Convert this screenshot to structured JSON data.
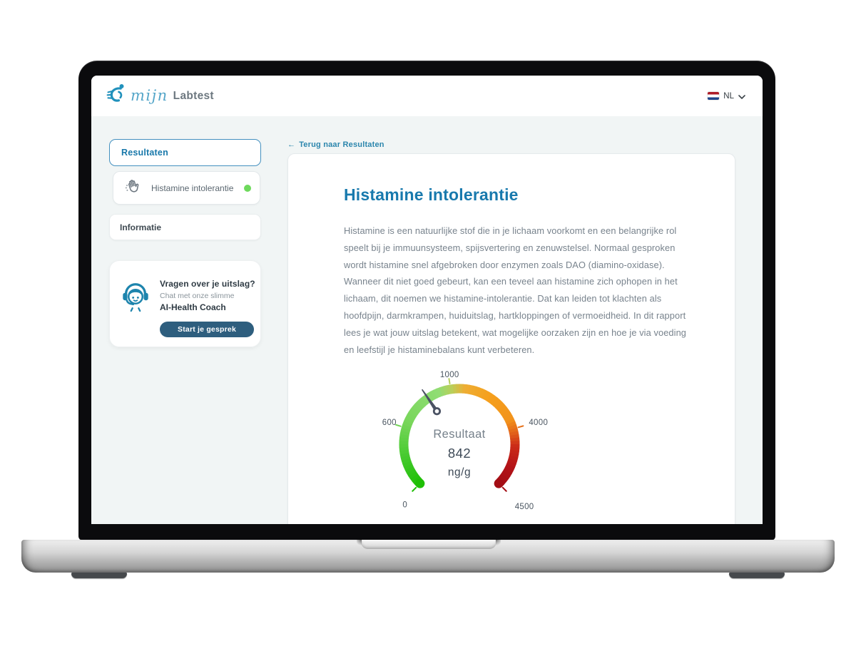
{
  "header": {
    "brand_script": "mijn",
    "brand_rest": "Labtest",
    "language": {
      "code": "NL"
    }
  },
  "sidebar": {
    "resultaten_label": "Resultaten",
    "test_item": {
      "label": "Histamine intolerantie",
      "status_color": "#6ed95c"
    },
    "informatie_label": "Informatie",
    "chat": {
      "title": "Vragen over je uitslag?",
      "subtitle": "Chat met onze slimme",
      "coach": "AI-Health Coach",
      "button_label": "Start je gesprek"
    }
  },
  "main": {
    "back_arrow": "←",
    "back_label": "Terug naar Resultaten",
    "title": "Histamine intolerantie",
    "intro": "Histamine is een natuurlijke stof die in je lichaam voorkomt en een belangrijke rol speelt bij je immuunsysteem, spijsvertering en zenuwstelsel. Normaal gesproken wordt histamine snel afgebroken door enzymen zoals DAO (diamino-oxidase). Wanneer dit niet goed gebeurt, kan een teveel aan histamine zich ophopen in het lichaam, dit noemen we histamine-intolerantie. Dat kan leiden tot klachten als hoofdpijn, darmkrampen, huiduitslag, hartkloppingen of vermoeidheid. In dit rapport lees je wat jouw uitslag betekent, wat mogelijke oorzaken zijn en hoe je via voeding en leefstijl je histaminebalans kunt verbeteren."
  },
  "chart_data": {
    "type": "gauge",
    "title": "Resultaat",
    "value": 842,
    "value_text": "842",
    "unit": "ng/g",
    "min": 0,
    "max": 4500,
    "start_angle": 225,
    "end_angle": -45,
    "ticks": [
      {
        "value": 0,
        "label": "0",
        "angle": 225,
        "label_angle": 228,
        "label_r": 114
      },
      {
        "value": 600,
        "label": "600",
        "angle": 163,
        "label_angle": 162.4,
        "label_r": 103
      },
      {
        "value": 1000,
        "label": "1000",
        "angle": 99,
        "label_angle": 98,
        "label_r": 99
      },
      {
        "value": 4000,
        "label": "4000",
        "angle": 16,
        "label_angle": 15.6,
        "label_r": 115
      },
      {
        "value": 4500,
        "label": "4500",
        "angle": -45,
        "label_angle": -43.7,
        "label_r": 126
      }
    ],
    "color_stops": [
      {
        "t": 0.0,
        "color": "#1fbf06"
      },
      {
        "t": 0.12,
        "color": "#46ca2e"
      },
      {
        "t": 0.25,
        "color": "#78d65a"
      },
      {
        "t": 0.42,
        "color": "#90dd74"
      },
      {
        "t": 0.47,
        "color": "#b9cf5a"
      },
      {
        "t": 0.52,
        "color": "#eead33"
      },
      {
        "t": 0.62,
        "color": "#f5a01d"
      },
      {
        "t": 0.74,
        "color": "#f2931c"
      },
      {
        "t": 0.79,
        "color": "#e2621a"
      },
      {
        "t": 0.84,
        "color": "#cb2b18"
      },
      {
        "t": 0.92,
        "color": "#b41318"
      },
      {
        "t": 1.0,
        "color": "#a30d14"
      }
    ],
    "needle_color": "#4a5263"
  }
}
